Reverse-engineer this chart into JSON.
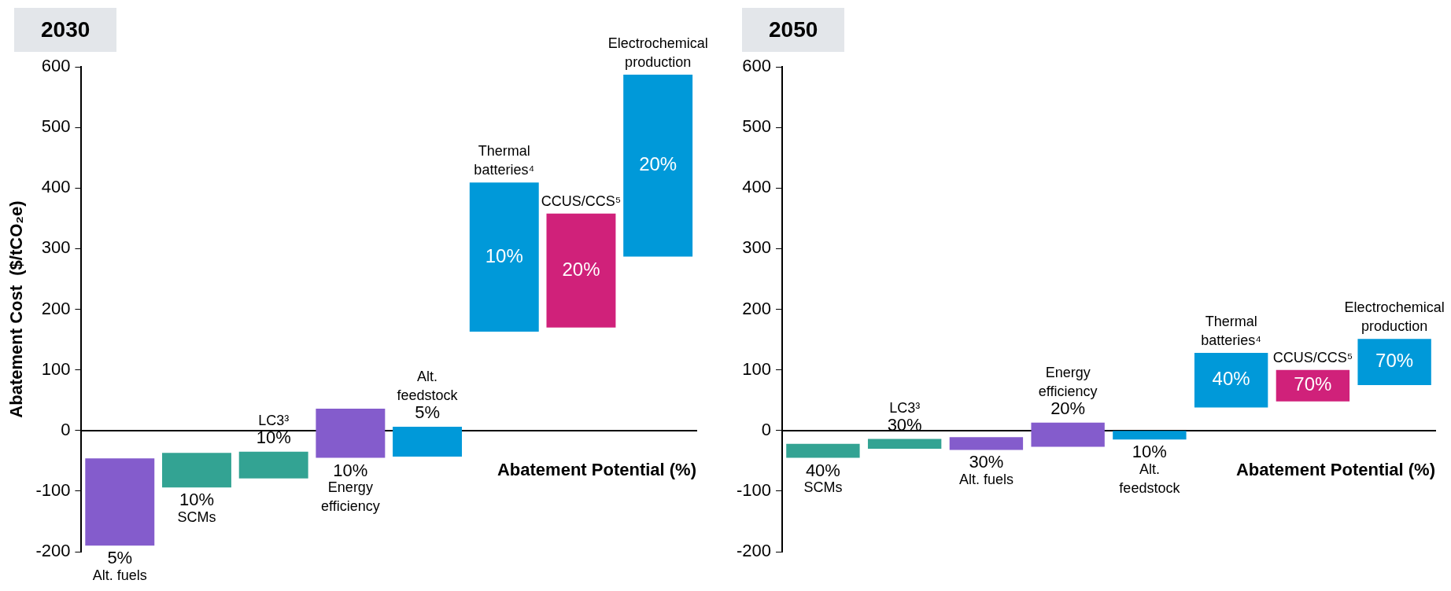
{
  "chart_data": [
    {
      "type": "bar",
      "title": "2030",
      "ylabel": "Abatement Cost  ($/tCO₂e)",
      "xlabel": "Abatement Potential (%)",
      "categories": [
        "Alt. fuels",
        "SCMs",
        "LC3³",
        "Energy efficiency",
        "Alt. feedstock",
        "Thermal batteries⁴",
        "CCUS/CCS⁵",
        "Electrochemical production"
      ],
      "base": [
        -190,
        -94,
        -79,
        -45,
        -43,
        163,
        170,
        287
      ],
      "values": [
        144,
        57,
        44,
        81,
        49,
        246,
        188,
        300
      ],
      "colors": [
        "#845ccc",
        "#33a393",
        "#33a393",
        "#845ccc",
        "#0099d9",
        "#0099d9",
        "#d0217a",
        "#0099d9"
      ],
      "annotations": [
        {
          "text": "5%",
          "x": "Alt. fuels",
          "y": -190
        },
        {
          "text": "10%",
          "x": "SCMs",
          "y": -94
        },
        {
          "text": "10%",
          "x": "LC3³",
          "y": -35
        },
        {
          "text": "10%",
          "x": "Energy efficiency",
          "y": -45
        },
        {
          "text": "5%",
          "x": "Alt. feedstock",
          "y": 6
        },
        "10%",
        "20%",
        "20%"
      ],
      "ylim": [
        -200,
        600
      ],
      "yticks": [
        -200,
        -100,
        0,
        100,
        200,
        300,
        400,
        500,
        600
      ]
    },
    {
      "type": "bar",
      "title": "2050",
      "xlabel": "Abatement Potential (%)",
      "categories": [
        "SCMs",
        "LC3³",
        "Alt. fuels",
        "Energy efficiency",
        "Alt. feedstock",
        "Thermal batteries⁴",
        "CCUS/CCS⁵",
        "Electrochemical production"
      ],
      "base": [
        -45,
        -30,
        -32,
        -27,
        -15,
        38,
        48,
        75
      ],
      "values": [
        23,
        16,
        21,
        40,
        15,
        90,
        52,
        76
      ],
      "colors": [
        "#33a393",
        "#33a393",
        "#845ccc",
        "#845ccc",
        "#0099d9",
        "#0099d9",
        "#d0217a",
        "#0099d9"
      ],
      "annotations": [
        {
          "text": "40%",
          "x": "SCMs",
          "y": -45
        },
        {
          "text": "30%",
          "x": "LC3³",
          "y": -14
        },
        {
          "text": "30%",
          "x": "Alt. fuels",
          "y": -32
        },
        {
          "text": "20%",
          "x": "Energy efficiency",
          "y": 13
        },
        {
          "text": "10%",
          "x": "Alt. feedstock",
          "y": -15
        },
        "40%",
        "70%",
        "70%"
      ],
      "ylim": [
        -200,
        600
      ],
      "yticks": [
        -200,
        -100,
        0,
        100,
        200,
        300,
        400,
        500,
        600
      ]
    }
  ]
}
